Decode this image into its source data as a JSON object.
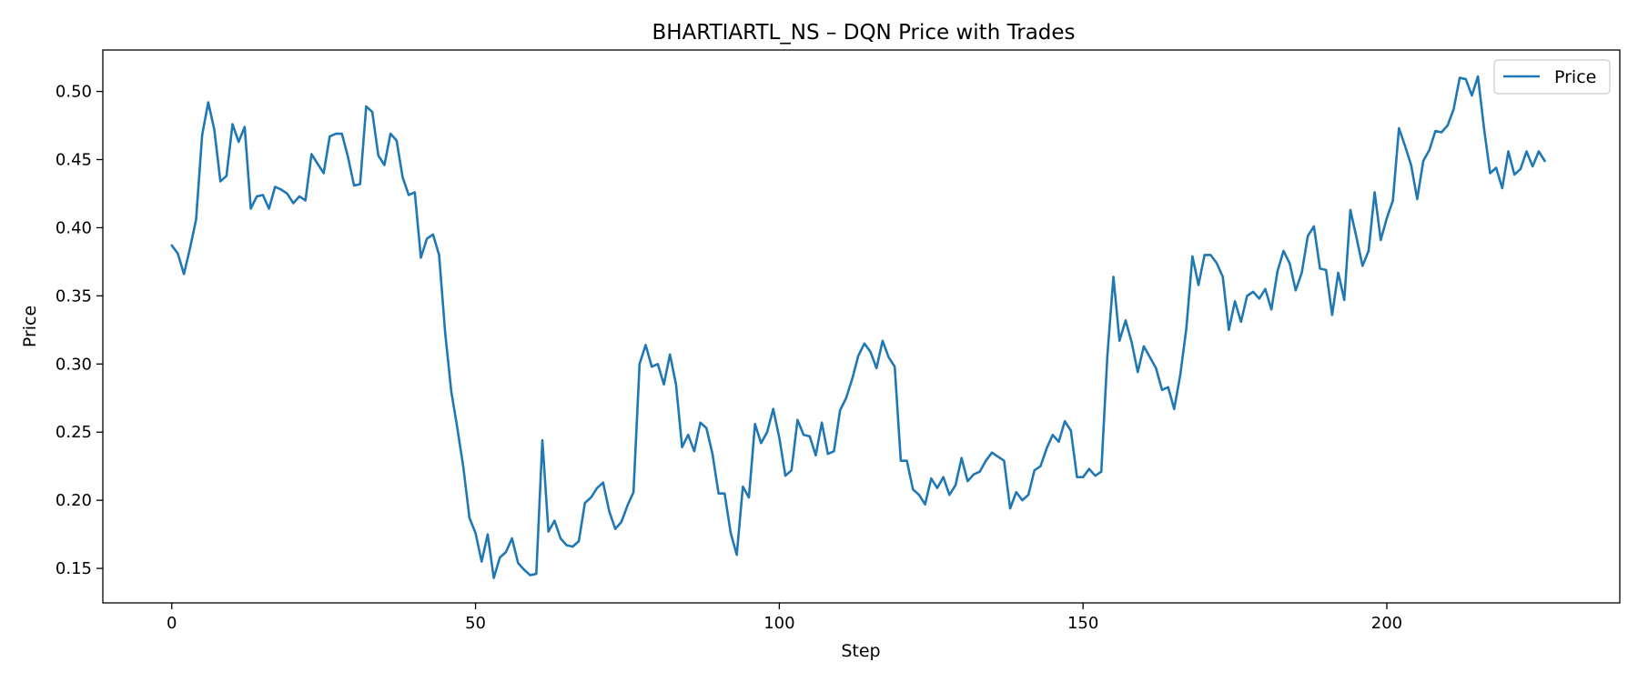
{
  "chart_data": {
    "type": "line",
    "title": "BHARTIARTL_NS – DQN Price with Trades",
    "xlabel": "Step",
    "ylabel": "Price",
    "xlim": [
      -11.35,
      238.35
    ],
    "ylim": [
      0.1247,
      0.5304
    ],
    "xticks": [
      0,
      50,
      100,
      150,
      200
    ],
    "yticks": [
      0.15,
      0.2,
      0.25,
      0.3,
      0.35,
      0.4,
      0.45,
      0.5
    ],
    "ytick_labels": [
      "0.15",
      "0.20",
      "0.25",
      "0.30",
      "0.35",
      "0.40",
      "0.45",
      "0.50"
    ],
    "grid": false,
    "legend_position": "top-right",
    "colors": {
      "series": "#1f77b4"
    },
    "series": [
      {
        "name": "Price",
        "x_start": 0,
        "values": [
          0.387,
          0.381,
          0.366,
          0.385,
          0.406,
          0.468,
          0.492,
          0.472,
          0.434,
          0.438,
          0.476,
          0.463,
          0.474,
          0.414,
          0.423,
          0.424,
          0.414,
          0.43,
          0.428,
          0.425,
          0.418,
          0.423,
          0.42,
          0.454,
          0.447,
          0.44,
          0.467,
          0.469,
          0.469,
          0.452,
          0.431,
          0.432,
          0.489,
          0.485,
          0.453,
          0.446,
          0.469,
          0.464,
          0.437,
          0.424,
          0.426,
          0.378,
          0.392,
          0.395,
          0.38,
          0.323,
          0.28,
          0.253,
          0.224,
          0.187,
          0.176,
          0.155,
          0.175,
          0.143,
          0.158,
          0.162,
          0.172,
          0.154,
          0.149,
          0.145,
          0.146,
          0.244,
          0.177,
          0.185,
          0.172,
          0.167,
          0.166,
          0.17,
          0.198,
          0.202,
          0.209,
          0.213,
          0.192,
          0.179,
          0.184,
          0.196,
          0.206,
          0.3,
          0.314,
          0.298,
          0.3,
          0.285,
          0.307,
          0.285,
          0.239,
          0.248,
          0.236,
          0.257,
          0.253,
          0.234,
          0.205,
          0.205,
          0.176,
          0.16,
          0.21,
          0.202,
          0.256,
          0.242,
          0.25,
          0.267,
          0.246,
          0.218,
          0.222,
          0.259,
          0.248,
          0.247,
          0.233,
          0.257,
          0.234,
          0.236,
          0.266,
          0.275,
          0.289,
          0.306,
          0.315,
          0.309,
          0.297,
          0.317,
          0.305,
          0.298,
          0.229,
          0.229,
          0.208,
          0.204,
          0.197,
          0.216,
          0.209,
          0.217,
          0.204,
          0.211,
          0.231,
          0.214,
          0.219,
          0.221,
          0.229,
          0.235,
          0.232,
          0.229,
          0.194,
          0.206,
          0.2,
          0.204,
          0.222,
          0.225,
          0.238,
          0.248,
          0.243,
          0.258,
          0.251,
          0.217,
          0.217,
          0.223,
          0.218,
          0.221,
          0.306,
          0.364,
          0.317,
          0.332,
          0.316,
          0.294,
          0.313,
          0.305,
          0.297,
          0.281,
          0.283,
          0.267,
          0.292,
          0.326,
          0.379,
          0.358,
          0.38,
          0.38,
          0.374,
          0.364,
          0.325,
          0.346,
          0.331,
          0.35,
          0.353,
          0.348,
          0.355,
          0.34,
          0.368,
          0.383,
          0.374,
          0.354,
          0.367,
          0.394,
          0.401,
          0.37,
          0.369,
          0.336,
          0.367,
          0.347,
          0.413,
          0.393,
          0.372,
          0.383,
          0.426,
          0.391,
          0.407,
          0.42,
          0.473,
          0.46,
          0.446,
          0.421,
          0.449,
          0.457,
          0.471,
          0.47,
          0.475,
          0.487,
          0.51,
          0.509,
          0.497,
          0.511,
          0.473,
          0.44,
          0.444,
          0.429,
          0.456,
          0.439,
          0.443,
          0.456,
          0.445,
          0.456,
          0.449
        ]
      }
    ]
  }
}
